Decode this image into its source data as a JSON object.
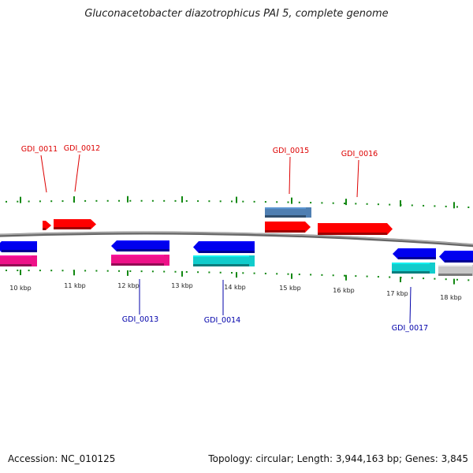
{
  "title": "Gluconacetobacter diazotrophicus PAI 5, complete genome",
  "footer": {
    "accession": "Accession: NC_010125",
    "stats": "Topology: circular; Length: 3,944,163 bp; Genes: 3,845"
  },
  "colors": {
    "red": "#ff0000",
    "blue": "#0000ee",
    "magenta": "#ee1188",
    "cyan": "#11cccc",
    "steelblue": "#4f7fb2",
    "gray": "#c8c8c8",
    "tick": "#118811",
    "backbone": "#888888",
    "label_red": "#dd0000",
    "label_blue": "#0000aa"
  },
  "kbp_labels": [
    {
      "kbp": 10,
      "text": "10 kbp"
    },
    {
      "kbp": 11,
      "text": "11 kbp"
    },
    {
      "kbp": 12,
      "text": "12 kbp"
    },
    {
      "kbp": 13,
      "text": "13 kbp"
    },
    {
      "kbp": 14,
      "text": "14 kbp"
    },
    {
      "kbp": 15,
      "text": "15 kbp"
    },
    {
      "kbp": 16,
      "text": "16 kbp"
    },
    {
      "kbp": 17,
      "text": "17 kbp"
    },
    {
      "kbp": 18,
      "text": "18 kbp"
    }
  ],
  "gene_labels": [
    {
      "text": "GDI_0011",
      "color": "red"
    },
    {
      "text": "GDI_0012",
      "color": "red"
    },
    {
      "text": "GDI_0015",
      "color": "red"
    },
    {
      "text": "GDI_0016",
      "color": "red"
    },
    {
      "text": "GDI_0013",
      "color": "blue"
    },
    {
      "text": "GDI_0014",
      "color": "blue"
    },
    {
      "text": "GDI_0017",
      "color": "blue"
    }
  ]
}
